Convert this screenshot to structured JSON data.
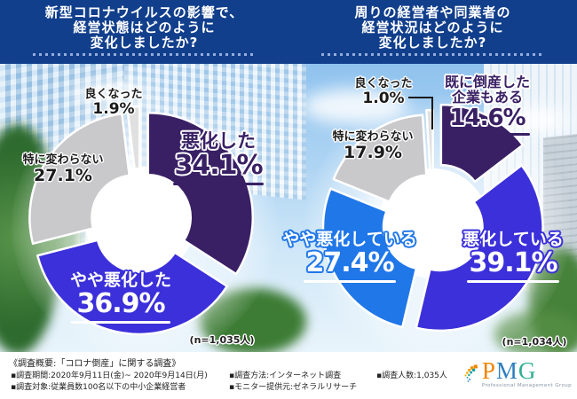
{
  "header": {
    "left_title_lines": [
      "新型コロナウイルスの影響で、",
      "経営状態はどのように",
      "変化しましたか?"
    ],
    "right_title_lines": [
      "周りの経営者や同業者の",
      "経営状況はどのように",
      "変化しましたか?"
    ]
  },
  "chart_data": [
    {
      "type": "pie",
      "donut": true,
      "title": "新型コロナウイルスの影響で、経営状態はどのように変化しましたか?",
      "n_label": "(n=1,035人)",
      "segments": [
        {
          "label": "悪化した",
          "value": 34.1,
          "pct": "34.1%",
          "color": "#392064"
        },
        {
          "label": "やや悪化した",
          "value": 36.9,
          "pct": "36.9%",
          "color": "#3b30da"
        },
        {
          "label": "特に変わらない",
          "value": 27.1,
          "pct": "27.1%",
          "color": "#c9c9cb"
        },
        {
          "label": "良くなった",
          "value": 1.9,
          "pct": "1.9%",
          "color": "#e0e0e0"
        }
      ]
    },
    {
      "type": "pie",
      "donut": true,
      "title": "周りの経営者や同業者の経営状況はどのように変化しましたか?",
      "n_label": "(n=1,034人)",
      "segments": [
        {
          "label": "既に倒産した企業もある",
          "label_lines": [
            "既に倒産した",
            "企業もある"
          ],
          "value": 14.6,
          "pct": "14.6%",
          "color": "#392064"
        },
        {
          "label": "悪化している",
          "value": 39.1,
          "pct": "39.1%",
          "color": "#3b30da"
        },
        {
          "label": "やや悪化している",
          "value": 27.4,
          "pct": "27.4%",
          "color": "#2077e8"
        },
        {
          "label": "特に変わらない",
          "value": 17.9,
          "pct": "17.9%",
          "color": "#c9c9cb"
        },
        {
          "label": "良くなった",
          "value": 1.0,
          "pct": "1.0%",
          "color": "#e0e0e0"
        }
      ]
    }
  ],
  "footer": {
    "heading": "《調査概要:「コロナ倒産」に関する調査》",
    "items_col1": [
      "▪調査期間:2020年9月11日(金)~ 2020年9月14日(月)",
      "▪調査対象:従業員数100名以下の中小企業経営者"
    ],
    "items_col2": [
      "▪調査方法:インターネット調査",
      "▪モニター提供元:ゼネラルリサーチ"
    ],
    "items_col3": [
      "▪調査人数:1,035人"
    ]
  },
  "logo": {
    "letters": [
      "P",
      "M",
      "G"
    ],
    "subtext": "Professional Management Group"
  }
}
